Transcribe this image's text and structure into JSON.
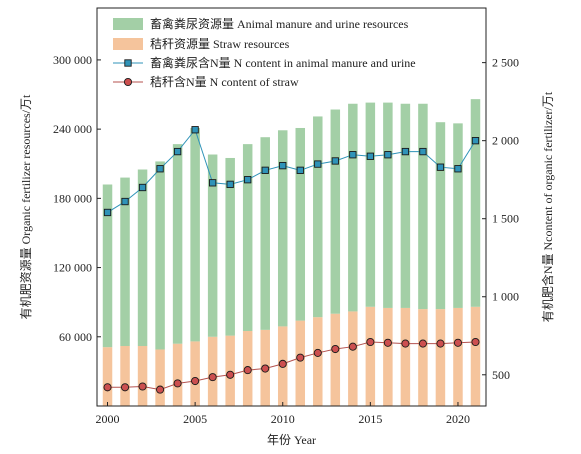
{
  "chart_data": {
    "type": "bar",
    "years": [
      2000,
      2001,
      2002,
      2003,
      2004,
      2005,
      2006,
      2007,
      2008,
      2009,
      2010,
      2011,
      2012,
      2013,
      2014,
      2015,
      2016,
      2017,
      2018,
      2019,
      2020,
      2021
    ],
    "stacked_bars": [
      {
        "name": "畜禽粪尿资源量 Animal manure and urine resources",
        "color": "#a3cfa6",
        "values": [
          141000,
          146000,
          153000,
          163000,
          173000,
          185000,
          158000,
          154000,
          162000,
          167000,
          170000,
          167000,
          174000,
          177000,
          180000,
          177000,
          178000,
          177000,
          178000,
          162000,
          160000,
          180000
        ]
      },
      {
        "name": "秸秆资源量 Straw resources",
        "color": "#f5c49c",
        "values": [
          51000,
          52000,
          52000,
          49000,
          54000,
          56000,
          60000,
          61000,
          65000,
          66000,
          69000,
          74000,
          77000,
          80000,
          82000,
          86000,
          85000,
          85000,
          84000,
          84000,
          85000,
          86000
        ]
      }
    ],
    "line_series": [
      {
        "name": "畜禽粪尿含N量 N content in animal manure and urine",
        "color": "#2f93b8",
        "marker_fill": "#2f93b8",
        "marker_edge": "#1a1a1a",
        "marker": "square",
        "values": [
          1540,
          1610,
          1700,
          1820,
          1930,
          2070,
          1730,
          1720,
          1750,
          1810,
          1840,
          1810,
          1850,
          1870,
          1910,
          1900,
          1910,
          1930,
          1930,
          1830,
          1820,
          2000
        ]
      },
      {
        "name": "秸秆含N量 N content of straw",
        "color": "#b5524e",
        "marker_fill": "#cc4f4f",
        "marker_edge": "#1a1a1a",
        "marker": "circle",
        "values": [
          420,
          420,
          425,
          405,
          445,
          460,
          485,
          500,
          530,
          540,
          570,
          610,
          640,
          665,
          680,
          710,
          705,
          700,
          700,
          700,
          705,
          710
        ]
      }
    ],
    "xlabel": "年份 Year",
    "ylabel_left": "有机肥资源量 Organic fertilizer resources/万t",
    "ylabel_right": "有机肥含N量 Ncontent of organic fertilizer/万t",
    "x_ticks": [
      2000,
      2005,
      2010,
      2015,
      2020
    ],
    "left_ticks": [
      60000,
      120000,
      180000,
      240000,
      300000
    ],
    "left_tick_labels": [
      "60 000",
      "120 000",
      "180 000",
      "240 000",
      "300 000"
    ],
    "right_ticks": [
      500,
      1000,
      1500,
      2000,
      2500
    ],
    "right_tick_labels": [
      "500",
      "1 000",
      "1 500",
      "2 000",
      "2 500"
    ],
    "ylim_left": [
      0,
      345000
    ],
    "ylim_right": [
      300,
      2850
    ],
    "xlim": [
      1999.4,
      2021.6
    ],
    "legend_position": "top-left",
    "grid": false
  }
}
